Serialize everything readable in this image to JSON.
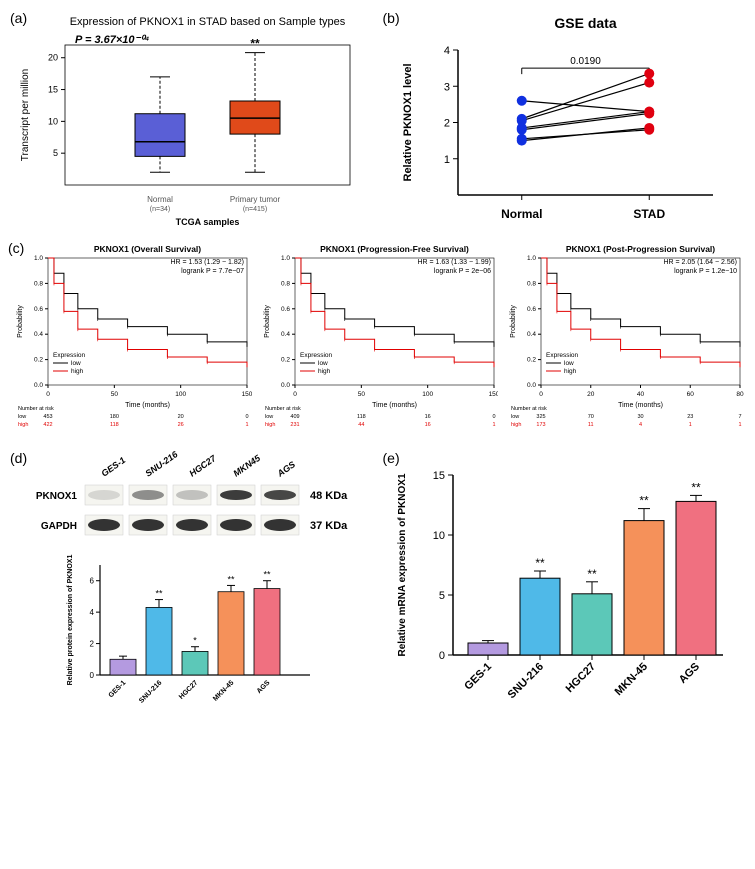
{
  "panel_a": {
    "label": "(a)",
    "title": "Expression of PKNOX1 in STAD based on Sample types",
    "title_fontsize": 11,
    "pvalue_text": "P = 3.67×10⁻⁰⁴",
    "pvalue_fontsize": 11,
    "significance": "**",
    "ylabel": "Transcript per million",
    "ylabel_fontsize": 10,
    "xlabel": "TCGA samples",
    "xlabel_fontsize": 9,
    "ylim": [
      0,
      22
    ],
    "yticks": [
      5,
      10,
      15,
      20
    ],
    "boxes": [
      {
        "label": "Normal",
        "sublabel": "(n=34)",
        "q1": 4.5,
        "median": 6.8,
        "q3": 11.2,
        "whisker_lo": 2.0,
        "whisker_hi": 17.0,
        "color": "#5a5fd6"
      },
      {
        "label": "Primary tumor",
        "sublabel": "(n=415)",
        "q1": 8.0,
        "median": 10.5,
        "q3": 13.2,
        "whisker_lo": 2.0,
        "whisker_hi": 20.8,
        "color": "#e04a1a"
      }
    ]
  },
  "panel_b": {
    "label": "(b)",
    "title": "GSE data",
    "title_fontsize": 14,
    "pvalue_text": "0.0190",
    "ylabel": "Relative PKNOX1 level",
    "ylabel_fontsize": 11,
    "ylim": [
      0,
      4
    ],
    "yticks": [
      1,
      2,
      3,
      4
    ],
    "xcategories": [
      "Normal",
      "STAD"
    ],
    "normal_color": "#1030e0",
    "stad_color": "#e00010",
    "pairs": [
      [
        2.6,
        2.3
      ],
      [
        2.1,
        3.35
      ],
      [
        2.05,
        3.1
      ],
      [
        1.85,
        2.3
      ],
      [
        1.8,
        2.25
      ],
      [
        1.55,
        1.8
      ],
      [
        1.5,
        1.85
      ]
    ]
  },
  "panel_c": {
    "label": "(c)",
    "subplots": [
      {
        "title": "PKNOX1 (Overall Survival)",
        "hr_text": "HR = 1.53 (1.29 − 1.82)",
        "logrank_text": "logrank P = 7.7e−07",
        "ylabel": "Probability",
        "xlabel": "Time (months)",
        "xlim": [
          0,
          150
        ],
        "xticks": [
          0,
          50,
          100,
          150
        ],
        "ylim": [
          0,
          1
        ],
        "yticks": [
          0.0,
          0.2,
          0.4,
          0.6,
          0.8,
          1.0
        ],
        "legend_title": "Expression",
        "low_color": "#000000",
        "high_color": "#e00000",
        "risk_label": "Number at risk",
        "risk_low": [
          "low",
          "453",
          "180",
          "20",
          "0"
        ],
        "risk_high": [
          "high",
          "422",
          "118",
          "26",
          "1"
        ]
      },
      {
        "title": "PKNOX1 (Progression-Free Survival)",
        "hr_text": "HR = 1.63 (1.33 − 1.99)",
        "logrank_text": "logrank P = 2e−06",
        "ylabel": "Probability",
        "xlabel": "Time (months)",
        "xlim": [
          0,
          150
        ],
        "xticks": [
          0,
          50,
          100,
          150
        ],
        "ylim": [
          0,
          1
        ],
        "yticks": [
          0.0,
          0.2,
          0.4,
          0.6,
          0.8,
          1.0
        ],
        "legend_title": "Expression",
        "low_color": "#000000",
        "high_color": "#e00000",
        "risk_label": "Number at risk",
        "risk_low": [
          "low",
          "409",
          "118",
          "16",
          "0"
        ],
        "risk_high": [
          "high",
          "231",
          "44",
          "16",
          "1"
        ]
      },
      {
        "title": "PKNOX1 (Post-Progression Survival)",
        "hr_text": "HR = 2.05 (1.64 − 2.56)",
        "logrank_text": "logrank P = 1.2e−10",
        "ylabel": "Probability",
        "xlabel": "Time (months)",
        "xlim": [
          0,
          80
        ],
        "xticks": [
          0,
          20,
          40,
          60,
          80
        ],
        "ylim": [
          0,
          1
        ],
        "yticks": [
          0.0,
          0.2,
          0.4,
          0.6,
          0.8,
          1.0
        ],
        "legend_title": "Expression",
        "low_color": "#000000",
        "high_color": "#e00000",
        "risk_label": "Number at risk",
        "risk_low": [
          "low",
          "325",
          "70",
          "30",
          "23",
          "7"
        ],
        "risk_high": [
          "high",
          "173",
          "11",
          "4",
          "1",
          "1"
        ]
      }
    ]
  },
  "panel_d": {
    "label": "(d)",
    "blot_labels": [
      "GES-1",
      "SNU-216",
      "HGC27",
      "MKN45",
      "AGS"
    ],
    "pknox1_label": "PKNOX1",
    "gapdh_label": "GAPDH",
    "pknox1_kda": "48 KDa",
    "gapdh_kda": "37 KDa",
    "ylabel": "Relative protein expression of PKNOX1",
    "ylabel_fontsize": 7,
    "ylim": [
      0,
      7
    ],
    "yticks": [
      0,
      2,
      4,
      6
    ],
    "bars": [
      {
        "label": "GES-1",
        "value": 1.0,
        "err": 0.2,
        "color": "#b49ae0",
        "sig": ""
      },
      {
        "label": "SNU-216",
        "value": 4.3,
        "err": 0.5,
        "color": "#4fb9e8",
        "sig": "**"
      },
      {
        "label": "HGC27",
        "value": 1.5,
        "err": 0.3,
        "color": "#5cc8b8",
        "sig": "*"
      },
      {
        "label": "MKN-45",
        "value": 5.3,
        "err": 0.4,
        "color": "#f5915a",
        "sig": "**"
      },
      {
        "label": "AGS",
        "value": 5.5,
        "err": 0.5,
        "color": "#f07080",
        "sig": "**"
      }
    ]
  },
  "panel_e": {
    "label": "(e)",
    "ylabel": "Relative mRNA expression of PKNOX1",
    "ylabel_fontsize": 10,
    "ylim": [
      0,
      15
    ],
    "yticks": [
      0,
      5,
      10,
      15
    ],
    "bars": [
      {
        "label": "GES-1",
        "value": 1.0,
        "err": 0.2,
        "color": "#b49ae0",
        "sig": ""
      },
      {
        "label": "SNU-216",
        "value": 6.4,
        "err": 0.6,
        "color": "#4fb9e8",
        "sig": "**"
      },
      {
        "label": "HGC27",
        "value": 5.1,
        "err": 1.0,
        "color": "#5cc8b8",
        "sig": "**"
      },
      {
        "label": "MKN-45",
        "value": 11.2,
        "err": 1.0,
        "color": "#f5915a",
        "sig": "**"
      },
      {
        "label": "AGS",
        "value": 12.8,
        "err": 0.5,
        "color": "#f07080",
        "sig": "**"
      }
    ]
  }
}
